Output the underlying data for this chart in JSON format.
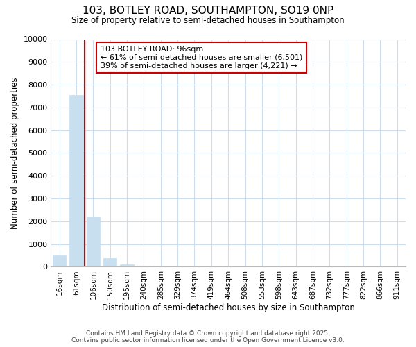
{
  "title_line1": "103, BOTLEY ROAD, SOUTHAMPTON, SO19 0NP",
  "title_line2": "Size of property relative to semi-detached houses in Southampton",
  "xlabel": "Distribution of semi-detached houses by size in Southampton",
  "ylabel": "Number of semi-detached properties",
  "categories": [
    "16sqm",
    "61sqm",
    "106sqm",
    "150sqm",
    "195sqm",
    "240sqm",
    "285sqm",
    "329sqm",
    "374sqm",
    "419sqm",
    "464sqm",
    "508sqm",
    "553sqm",
    "598sqm",
    "643sqm",
    "687sqm",
    "732sqm",
    "777sqm",
    "822sqm",
    "866sqm",
    "911sqm"
  ],
  "values": [
    510,
    7560,
    2200,
    380,
    100,
    40,
    15,
    8,
    5,
    3,
    2,
    2,
    1,
    1,
    1,
    0,
    0,
    0,
    0,
    0,
    0
  ],
  "bar_color": "#c8dff0",
  "bar_edgecolor": "#c8dff0",
  "property_line_x": 1.5,
  "property_label": "103 BOTLEY ROAD: 96sqm",
  "annotation_line1": "← 61% of semi-detached houses are smaller (6,501)",
  "annotation_line2": "39% of semi-detached houses are larger (4,221) →",
  "annotation_box_color": "#ffffff",
  "annotation_box_edgecolor": "#cc0000",
  "property_line_color": "#cc0000",
  "ylim": [
    0,
    10000
  ],
  "yticks": [
    0,
    1000,
    2000,
    3000,
    4000,
    5000,
    6000,
    7000,
    8000,
    9000,
    10000
  ],
  "grid_color": "#ccddee",
  "bg_color": "#ffffff",
  "footnote1": "Contains HM Land Registry data © Crown copyright and database right 2025.",
  "footnote2": "Contains public sector information licensed under the Open Government Licence v3.0."
}
